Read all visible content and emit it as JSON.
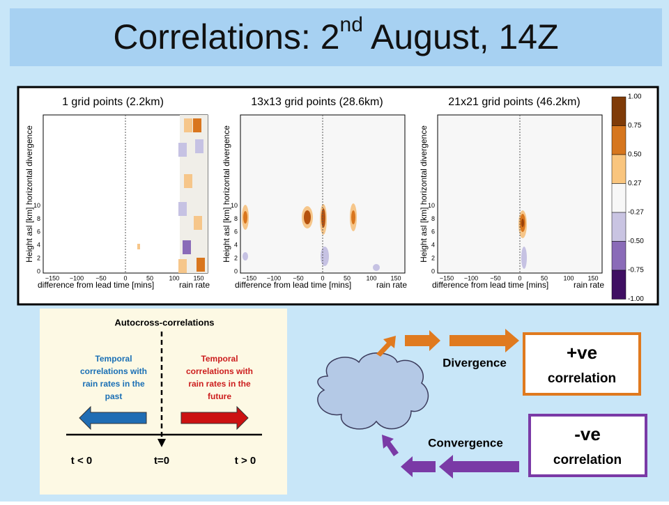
{
  "title": {
    "main": "Correlations: 2",
    "sup": "nd",
    "rest": " August, 14Z"
  },
  "panels": [
    {
      "title": "1 grid points (2.2km)"
    },
    {
      "title": "13x13 grid points (28.6km)"
    },
    {
      "title": "21x21 grid points (46.2km)"
    }
  ],
  "axes": {
    "ylabel": "Height asl [km] horizontal divergence",
    "xlabel": "difference from lead time [mins]",
    "extra": "rain rate",
    "xticks": [
      "−150",
      "−100",
      "−50",
      "0",
      "50",
      "100",
      "150"
    ],
    "yticks": [
      "0",
      "2",
      "4",
      "6",
      "8",
      "10"
    ]
  },
  "colorbar": {
    "labels": [
      "1.00",
      "0.75",
      "0.50",
      "0.27",
      "-0.27",
      "-0.50",
      "-0.75",
      "-1.00"
    ]
  },
  "diagram": {
    "title": "Autocross-correlations",
    "left": [
      "Temporal",
      "correlations with",
      "rain rates in the",
      "past"
    ],
    "right": [
      "Temporal",
      "correlations with",
      "rain rates in the",
      "future"
    ],
    "axis": [
      "t < 0",
      "t=0",
      "t > 0"
    ]
  },
  "flow": {
    "divergence": "Divergence",
    "pos_sign": "+ve",
    "pos_word": "correlation",
    "convergence": "Convergence",
    "neg_sign": "-ve",
    "neg_word": "correlation"
  }
}
